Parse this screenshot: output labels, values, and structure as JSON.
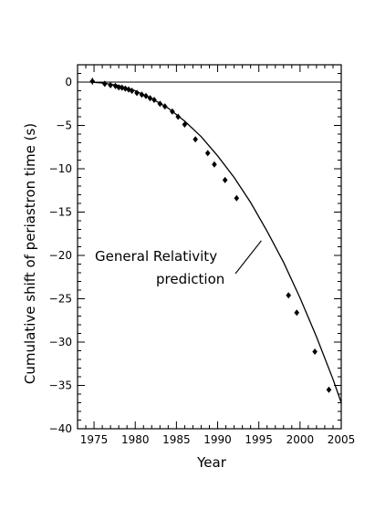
{
  "chart_data": {
    "type": "scatter",
    "title": "",
    "xlabel": "Year",
    "ylabel": "Cumulative shift of periastron time (s)",
    "xlim": [
      1973,
      2005
    ],
    "ylim": [
      -40,
      2
    ],
    "xticks": [
      1975,
      1980,
      1985,
      1990,
      1995,
      2000,
      2005
    ],
    "yticks": [
      0,
      -5,
      -10,
      -15,
      -20,
      -25,
      -30,
      -35,
      -40
    ],
    "grid": false,
    "annotation": {
      "text_line1": "General Relativity",
      "text_line2": "prediction"
    },
    "reference_line": {
      "y": 0
    },
    "curve": {
      "name": "General Relativity prediction",
      "x_start": 1974.5,
      "x_end": 2005,
      "points": [
        [
          1974.5,
          0.0
        ],
        [
          1976,
          -0.1
        ],
        [
          1978,
          -0.4
        ],
        [
          1980,
          -1.0
        ],
        [
          1982,
          -1.9
        ],
        [
          1984,
          -3.0
        ],
        [
          1986,
          -4.5
        ],
        [
          1988,
          -6.3
        ],
        [
          1990,
          -8.5
        ],
        [
          1992,
          -11.0
        ],
        [
          1994,
          -13.9
        ],
        [
          1996,
          -17.2
        ],
        [
          1998,
          -20.8
        ],
        [
          2000,
          -24.9
        ],
        [
          2002,
          -29.4
        ],
        [
          2004,
          -34.3
        ],
        [
          2005,
          -37.0
        ]
      ]
    },
    "series": [
      {
        "marker": "diamond",
        "points": [
          {
            "x": 1974.8,
            "y": 0.1,
            "err": 0.4
          },
          {
            "x": 1976.3,
            "y": -0.2,
            "err": 0.25
          },
          {
            "x": 1977.0,
            "y": -0.35,
            "err": 0.25
          },
          {
            "x": 1977.6,
            "y": -0.45,
            "err": 0.2
          },
          {
            "x": 1978.0,
            "y": -0.6,
            "err": 0.2
          },
          {
            "x": 1978.4,
            "y": -0.65,
            "err": 0.2
          },
          {
            "x": 1978.8,
            "y": -0.75,
            "err": 0.2
          },
          {
            "x": 1979.2,
            "y": -0.85,
            "err": 0.2
          },
          {
            "x": 1979.6,
            "y": -1.0,
            "err": 0.15
          },
          {
            "x": 1980.2,
            "y": -1.25,
            "err": 0.15
          },
          {
            "x": 1980.8,
            "y": -1.45,
            "err": 0.15
          },
          {
            "x": 1981.3,
            "y": -1.6,
            "err": 0.15
          },
          {
            "x": 1981.8,
            "y": -1.85,
            "err": 0.15
          },
          {
            "x": 1982.3,
            "y": -2.05,
            "err": 0.15
          },
          {
            "x": 1983.0,
            "y": -2.5,
            "err": 0.15
          },
          {
            "x": 1983.6,
            "y": -2.8,
            "err": 0.15
          },
          {
            "x": 1984.5,
            "y": -3.4,
            "err": 0.15
          },
          {
            "x": 1985.2,
            "y": -4.0,
            "err": 0.15
          },
          {
            "x": 1986.0,
            "y": -4.9,
            "err": 0.15
          },
          {
            "x": 1987.3,
            "y": -6.6,
            "err": 0.15
          },
          {
            "x": 1988.8,
            "y": -8.2,
            "err": 0.15
          },
          {
            "x": 1989.6,
            "y": -9.5,
            "err": 0.15
          },
          {
            "x": 1990.9,
            "y": -11.3,
            "err": 0.15
          },
          {
            "x": 1992.3,
            "y": -13.4,
            "err": 0.15
          },
          {
            "x": 1998.6,
            "y": -24.6,
            "err": 0.2
          },
          {
            "x": 1999.6,
            "y": -26.6,
            "err": 0.2
          },
          {
            "x": 2001.8,
            "y": -31.1,
            "err": 0.2
          },
          {
            "x": 2003.5,
            "y": -35.5,
            "err": 0.2
          }
        ]
      }
    ]
  }
}
